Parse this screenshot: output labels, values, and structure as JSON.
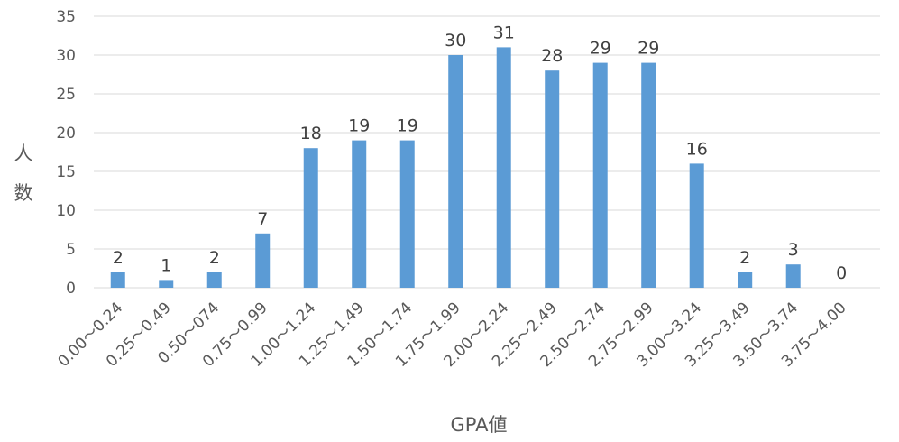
{
  "chart_data": {
    "type": "bar",
    "categories": [
      "0.00～0.24",
      "0.25～0.49",
      "0.50～074",
      "0.75～0.99",
      "1.00～1.24",
      "1.25～1.49",
      "1.50～1.74",
      "1.75～1.99",
      "2.00～2.24",
      "2.25～2.49",
      "2.50～2.74",
      "2.75～2.99",
      "3.00～3.24",
      "3.25～3.49",
      "3.50～3.74",
      "3.75～4.00"
    ],
    "values": [
      2,
      1,
      2,
      7,
      18,
      19,
      19,
      30,
      31,
      28,
      29,
      29,
      16,
      2,
      3,
      0
    ],
    "xlabel": "GPA値",
    "ylabel": "人数",
    "ylim": [
      0,
      35
    ],
    "yticks": [
      0,
      5,
      10,
      15,
      20,
      25,
      30,
      35
    ],
    "grid": true,
    "bar_color": "#5b9bd5",
    "grid_color": "#d9d9d9"
  }
}
